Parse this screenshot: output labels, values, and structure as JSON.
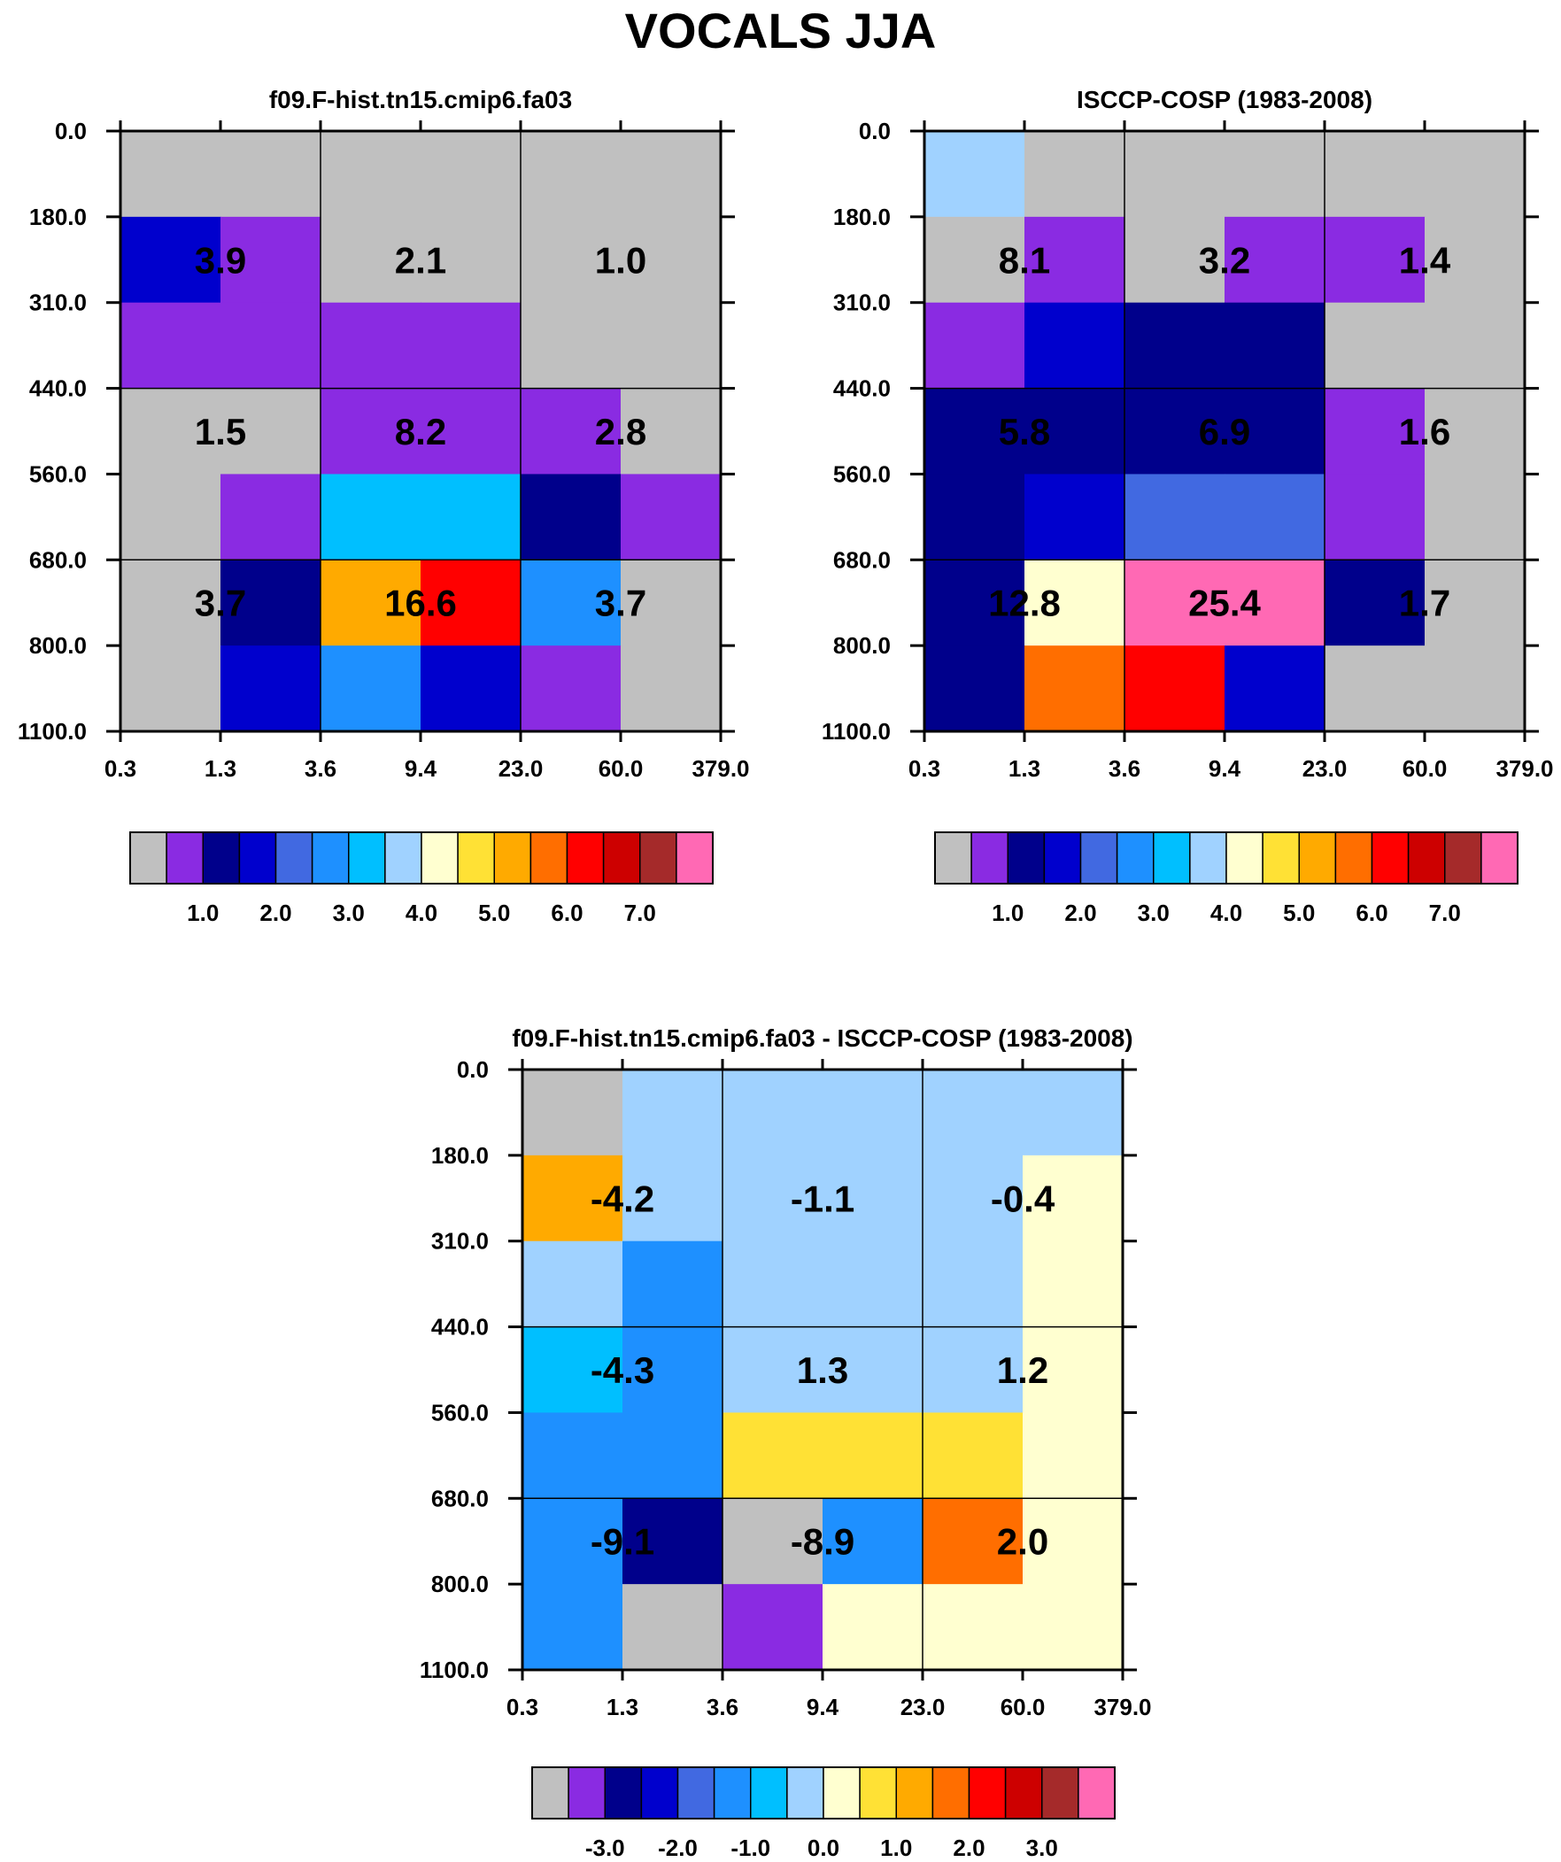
{
  "title": "VOCALS JJA",
  "palette": [
    "#c0c0c0",
    "#8a2be2",
    "#00008b",
    "#0000cd",
    "#4169e1",
    "#1e90ff",
    "#00bfff",
    "#a0d2ff",
    "#ffffd0",
    "#ffe135",
    "#ffaa00",
    "#ff6e00",
    "#ff0000",
    "#cd0000",
    "#a52a2a",
    "#ff69b4"
  ],
  "chart_data": [
    {
      "type": "heatmap",
      "title": "f09.F-hist.tn15.cmip6.fa03",
      "x_ticks": [
        "0.3",
        "1.3",
        "3.6",
        "9.4",
        "23.0",
        "60.0",
        "379.0"
      ],
      "y_ticks": [
        "0.0",
        "180.0",
        "310.0",
        "440.0",
        "560.0",
        "680.0",
        "800.0",
        "1100.0"
      ],
      "cell_color_index": [
        [
          0,
          0,
          0,
          0,
          0,
          0
        ],
        [
          3,
          1,
          0,
          0,
          0,
          0
        ],
        [
          1,
          1,
          1,
          1,
          0,
          0
        ],
        [
          0,
          0,
          1,
          1,
          1,
          0
        ],
        [
          0,
          1,
          6,
          6,
          2,
          1
        ],
        [
          0,
          2,
          10,
          12,
          5,
          0
        ],
        [
          0,
          3,
          5,
          3,
          1,
          0
        ]
      ],
      "group_values": [
        [
          "3.9",
          "2.1",
          "1.0"
        ],
        [
          "1.5",
          "8.2",
          "2.8"
        ],
        [
          "3.7",
          "16.6",
          "3.7"
        ]
      ],
      "colorbar_labels": [
        "1.0",
        "2.0",
        "3.0",
        "4.0",
        "5.0",
        "6.0",
        "7.0"
      ]
    },
    {
      "type": "heatmap",
      "title": "ISCCP-COSP (1983-2008)",
      "x_ticks": [
        "0.3",
        "1.3",
        "3.6",
        "9.4",
        "23.0",
        "60.0",
        "379.0"
      ],
      "y_ticks": [
        "0.0",
        "180.0",
        "310.0",
        "440.0",
        "560.0",
        "680.0",
        "800.0",
        "1100.0"
      ],
      "cell_color_index": [
        [
          7,
          0,
          0,
          0,
          0,
          0
        ],
        [
          0,
          1,
          0,
          1,
          1,
          0
        ],
        [
          1,
          3,
          2,
          2,
          0,
          0
        ],
        [
          2,
          2,
          2,
          2,
          1,
          0
        ],
        [
          2,
          3,
          4,
          4,
          1,
          0
        ],
        [
          2,
          8,
          15,
          15,
          2,
          0
        ],
        [
          2,
          11,
          12,
          3,
          0,
          0
        ]
      ],
      "group_values": [
        [
          "8.1",
          "3.2",
          "1.4"
        ],
        [
          "5.8",
          "6.9",
          "1.6"
        ],
        [
          "12.8",
          "25.4",
          "1.7"
        ]
      ],
      "colorbar_labels": [
        "1.0",
        "2.0",
        "3.0",
        "4.0",
        "5.0",
        "6.0",
        "7.0"
      ]
    },
    {
      "type": "heatmap",
      "title": "f09.F-hist.tn15.cmip6.fa03 - ISCCP-COSP (1983-2008)",
      "x_ticks": [
        "0.3",
        "1.3",
        "3.6",
        "9.4",
        "23.0",
        "60.0",
        "379.0"
      ],
      "y_ticks": [
        "0.0",
        "180.0",
        "310.0",
        "440.0",
        "560.0",
        "680.0",
        "800.0",
        "1100.0"
      ],
      "cell_color_index": [
        [
          0,
          7,
          7,
          7,
          7,
          7
        ],
        [
          10,
          7,
          7,
          7,
          7,
          8
        ],
        [
          7,
          5,
          7,
          7,
          7,
          8
        ],
        [
          6,
          5,
          7,
          7,
          7,
          8
        ],
        [
          5,
          5,
          9,
          9,
          9,
          8
        ],
        [
          5,
          2,
          0,
          5,
          11,
          8
        ],
        [
          5,
          0,
          1,
          8,
          8,
          8
        ]
      ],
      "group_values": [
        [
          "-4.2",
          "-1.1",
          "-0.4"
        ],
        [
          "-4.3",
          "1.3",
          "1.2"
        ],
        [
          "-9.1",
          "-8.9",
          "2.0"
        ]
      ],
      "colorbar_labels": [
        "-3.0",
        "-2.0",
        "-1.0",
        "0.0",
        "1.0",
        "2.0",
        "3.0"
      ]
    }
  ]
}
